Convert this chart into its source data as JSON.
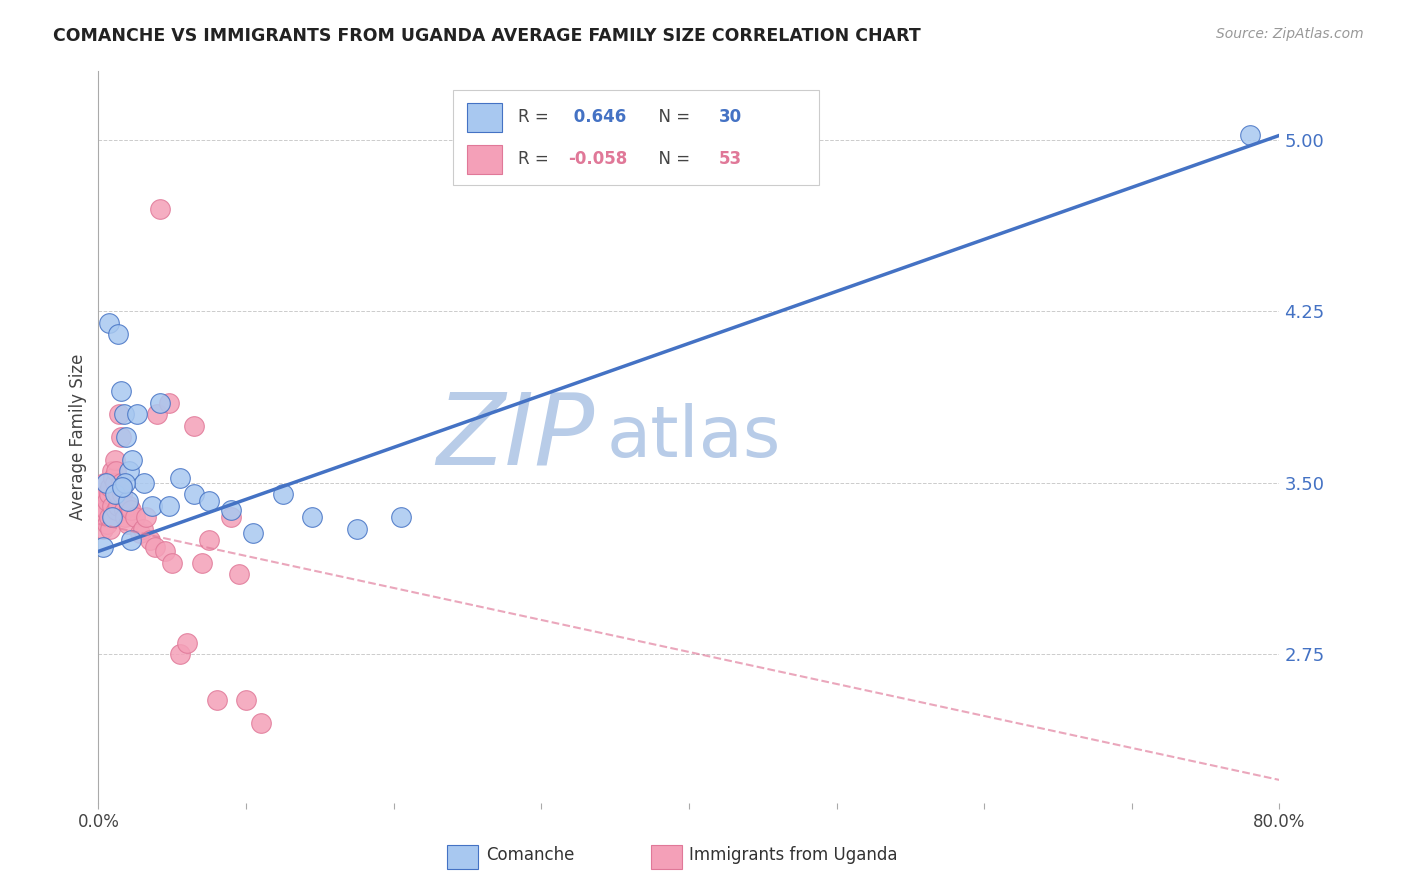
{
  "title": "COMANCHE VS IMMIGRANTS FROM UGANDA AVERAGE FAMILY SIZE CORRELATION CHART",
  "source": "Source: ZipAtlas.com",
  "ylabel": "Average Family Size",
  "xlim": [
    0.0,
    0.8
  ],
  "ylim": [
    2.1,
    5.3
  ],
  "yticks": [
    2.75,
    3.5,
    4.25,
    5.0
  ],
  "xticks": [
    0.0,
    0.1,
    0.2,
    0.3,
    0.4,
    0.5,
    0.6,
    0.7,
    0.8
  ],
  "xtick_labels": [
    "0.0%",
    "",
    "",
    "",
    "",
    "",
    "",
    "",
    "80.0%"
  ],
  "comanche_R": 0.646,
  "comanche_N": 30,
  "uganda_R": -0.058,
  "uganda_N": 53,
  "comanche_color": "#a8c8f0",
  "comanche_line_color": "#4472c4",
  "uganda_color": "#f4a0b8",
  "uganda_line_color": "#e07898",
  "watermark_zip_color": "#b8cce8",
  "watermark_atlas_color": "#b8cce8",
  "comanche_x": [
    0.003,
    0.005,
    0.007,
    0.009,
    0.011,
    0.013,
    0.015,
    0.017,
    0.019,
    0.021,
    0.023,
    0.026,
    0.031,
    0.036,
    0.042,
    0.048,
    0.055,
    0.065,
    0.075,
    0.09,
    0.105,
    0.125,
    0.145,
    0.175,
    0.205,
    0.02,
    0.022,
    0.018,
    0.016,
    0.78
  ],
  "comanche_y": [
    3.22,
    3.5,
    4.2,
    3.35,
    3.45,
    4.15,
    3.9,
    3.8,
    3.7,
    3.55,
    3.6,
    3.8,
    3.5,
    3.4,
    3.85,
    3.4,
    3.52,
    3.45,
    3.42,
    3.38,
    3.28,
    3.45,
    3.35,
    3.3,
    3.35,
    3.42,
    3.25,
    3.5,
    3.48,
    5.02
  ],
  "uganda_x": [
    0.001,
    0.002,
    0.003,
    0.003,
    0.004,
    0.005,
    0.005,
    0.006,
    0.006,
    0.007,
    0.007,
    0.008,
    0.008,
    0.009,
    0.009,
    0.01,
    0.01,
    0.011,
    0.011,
    0.012,
    0.012,
    0.013,
    0.013,
    0.014,
    0.015,
    0.015,
    0.016,
    0.017,
    0.018,
    0.02,
    0.021,
    0.022,
    0.025,
    0.028,
    0.03,
    0.032,
    0.035,
    0.038,
    0.04,
    0.042,
    0.045,
    0.048,
    0.05,
    0.055,
    0.06,
    0.065,
    0.07,
    0.075,
    0.08,
    0.09,
    0.095,
    0.1,
    0.11
  ],
  "uganda_y": [
    3.38,
    3.42,
    3.35,
    3.3,
    3.5,
    3.45,
    3.38,
    3.42,
    3.32,
    3.45,
    3.35,
    3.48,
    3.3,
    3.55,
    3.4,
    3.52,
    3.35,
    3.6,
    3.5,
    3.55,
    3.38,
    3.4,
    3.45,
    3.8,
    3.7,
    3.5,
    3.45,
    3.38,
    3.35,
    3.32,
    3.4,
    3.38,
    3.35,
    3.28,
    3.3,
    3.35,
    3.25,
    3.22,
    3.8,
    4.7,
    3.2,
    3.85,
    3.15,
    2.75,
    2.8,
    3.75,
    3.15,
    3.25,
    2.55,
    3.35,
    3.1,
    2.55,
    2.45
  ],
  "blue_line_x": [
    0.0,
    0.8
  ],
  "blue_line_y": [
    3.2,
    5.02
  ],
  "pink_line_x": [
    0.0,
    0.8
  ],
  "pink_line_y": [
    3.32,
    2.2
  ]
}
